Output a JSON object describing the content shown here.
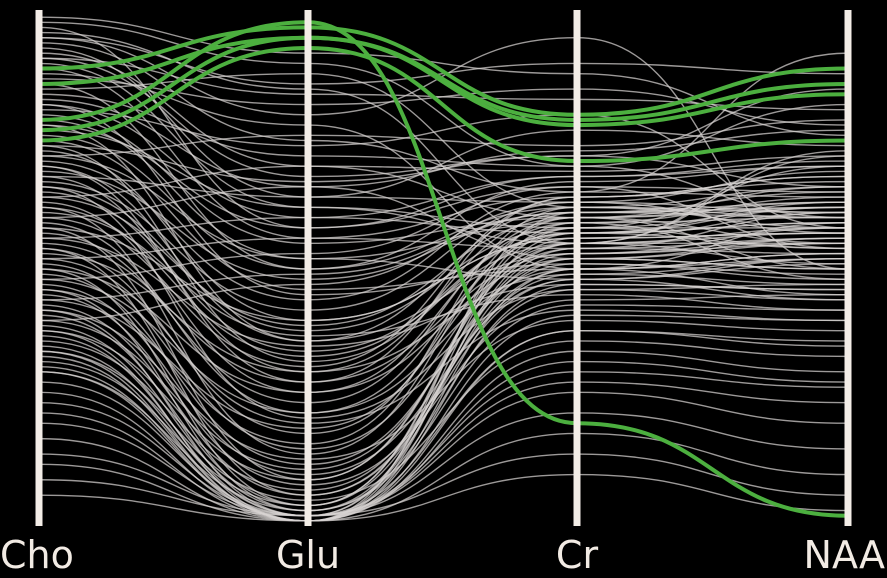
{
  "chart_data": {
    "type": "parallel-coordinates",
    "title": "",
    "axes": [
      "Cho",
      "Glu",
      "Cr",
      "NAA"
    ],
    "ylim": [
      0,
      1
    ],
    "grid": false,
    "legend": "none",
    "colors": {
      "background": "#000000",
      "axis": "#f3ede7",
      "background_lines": "#d8d4d2",
      "highlight": "#4caf3f"
    },
    "highlighted": [
      [
        0.89,
        0.97,
        0.8,
        0.89
      ],
      [
        0.86,
        0.95,
        0.79,
        0.86
      ],
      [
        0.77,
        0.95,
        0.78,
        0.84
      ],
      [
        0.75,
        0.93,
        0.71,
        0.75
      ],
      [
        0.79,
        0.98,
        0.2,
        0.02
      ]
    ],
    "series": [
      [
        0.98,
        0.9,
        0.7,
        0.6
      ],
      [
        0.96,
        0.85,
        0.55,
        0.72
      ],
      [
        0.95,
        0.8,
        0.95,
        0.5
      ],
      [
        0.94,
        0.75,
        0.65,
        0.92
      ],
      [
        0.92,
        0.7,
        0.6,
        0.55
      ],
      [
        0.91,
        0.68,
        0.72,
        0.66
      ],
      [
        0.9,
        0.62,
        0.58,
        0.7
      ],
      [
        0.88,
        0.78,
        0.5,
        0.45
      ],
      [
        0.87,
        0.82,
        0.85,
        0.78
      ],
      [
        0.85,
        0.88,
        0.62,
        0.6
      ],
      [
        0.84,
        0.72,
        0.7,
        0.82
      ],
      [
        0.83,
        0.66,
        0.52,
        0.5
      ],
      [
        0.82,
        0.6,
        0.57,
        0.62
      ],
      [
        0.81,
        0.74,
        0.8,
        0.58
      ],
      [
        0.8,
        0.55,
        0.6,
        0.66
      ],
      [
        0.79,
        0.52,
        0.48,
        0.44
      ],
      [
        0.78,
        0.58,
        0.66,
        0.54
      ],
      [
        0.77,
        0.62,
        0.55,
        0.73
      ],
      [
        0.76,
        0.5,
        0.62,
        0.61
      ],
      [
        0.75,
        0.46,
        0.5,
        0.52
      ],
      [
        0.74,
        0.67,
        0.72,
        0.85
      ],
      [
        0.73,
        0.4,
        0.56,
        0.57
      ],
      [
        0.72,
        0.52,
        0.59,
        0.48
      ],
      [
        0.71,
        0.44,
        0.65,
        0.64
      ],
      [
        0.7,
        0.36,
        0.53,
        0.55
      ],
      [
        0.69,
        0.48,
        0.61,
        0.6
      ],
      [
        0.68,
        0.3,
        0.49,
        0.47
      ],
      [
        0.67,
        0.42,
        0.63,
        0.69
      ],
      [
        0.66,
        0.38,
        0.58,
        0.58
      ],
      [
        0.65,
        0.34,
        0.55,
        0.51
      ],
      [
        0.64,
        0.39,
        0.6,
        0.63
      ],
      [
        0.63,
        0.26,
        0.52,
        0.56
      ],
      [
        0.62,
        0.33,
        0.57,
        0.59
      ],
      [
        0.61,
        0.37,
        0.45,
        0.42
      ],
      [
        0.6,
        0.31,
        0.64,
        0.67
      ],
      [
        0.59,
        0.22,
        0.5,
        0.53
      ],
      [
        0.58,
        0.4,
        0.56,
        0.61
      ],
      [
        0.57,
        0.24,
        0.6,
        0.5
      ],
      [
        0.56,
        0.35,
        0.47,
        0.46
      ],
      [
        0.55,
        0.28,
        0.53,
        0.58
      ],
      [
        0.54,
        0.18,
        0.58,
        0.62
      ],
      [
        0.53,
        0.3,
        0.61,
        0.65
      ],
      [
        0.52,
        0.2,
        0.42,
        0.4
      ],
      [
        0.51,
        0.15,
        0.54,
        0.56
      ],
      [
        0.5,
        0.26,
        0.59,
        0.6
      ],
      [
        0.49,
        0.12,
        0.51,
        0.49
      ],
      [
        0.48,
        0.22,
        0.57,
        0.63
      ],
      [
        0.47,
        0.1,
        0.48,
        0.52
      ],
      [
        0.46,
        0.16,
        0.62,
        0.58
      ],
      [
        0.45,
        0.08,
        0.44,
        0.45
      ],
      [
        0.44,
        0.19,
        0.55,
        0.55
      ],
      [
        0.43,
        0.06,
        0.5,
        0.59
      ],
      [
        0.42,
        0.13,
        0.4,
        0.38
      ],
      [
        0.41,
        0.04,
        0.58,
        0.54
      ],
      [
        0.4,
        0.11,
        0.52,
        0.5
      ],
      [
        0.39,
        0.03,
        0.46,
        0.47
      ],
      [
        0.38,
        0.09,
        0.56,
        0.57
      ],
      [
        0.37,
        0.02,
        0.38,
        0.36
      ],
      [
        0.36,
        0.07,
        0.49,
        0.52
      ],
      [
        0.35,
        0.02,
        0.54,
        0.61
      ],
      [
        0.34,
        0.05,
        0.36,
        0.33
      ],
      [
        0.33,
        0.01,
        0.47,
        0.46
      ],
      [
        0.32,
        0.04,
        0.53,
        0.56
      ],
      [
        0.31,
        0.01,
        0.34,
        0.3
      ],
      [
        0.3,
        0.03,
        0.43,
        0.42
      ],
      [
        0.28,
        0.02,
        0.3,
        0.27
      ],
      [
        0.26,
        0.01,
        0.41,
        0.4
      ],
      [
        0.24,
        0.02,
        0.28,
        0.24
      ],
      [
        0.22,
        0.01,
        0.38,
        0.35
      ],
      [
        0.2,
        0.02,
        0.26,
        0.2
      ],
      [
        0.17,
        0.01,
        0.32,
        0.28
      ],
      [
        0.14,
        0.02,
        0.22,
        0.15
      ],
      [
        0.12,
        0.01,
        0.18,
        0.1
      ],
      [
        0.09,
        0.02,
        0.14,
        0.06
      ],
      [
        0.06,
        0.01,
        0.1,
        0.03
      ],
      [
        0.97,
        0.58,
        0.68,
        0.71
      ],
      [
        0.93,
        0.64,
        0.63,
        0.57
      ],
      [
        0.89,
        0.56,
        0.54,
        0.53
      ],
      [
        0.86,
        0.5,
        0.67,
        0.7
      ],
      [
        0.82,
        0.45,
        0.51,
        0.48
      ],
      [
        0.78,
        0.36,
        0.62,
        0.66
      ],
      [
        0.74,
        0.32,
        0.57,
        0.54
      ],
      [
        0.7,
        0.28,
        0.64,
        0.68
      ],
      [
        0.66,
        0.21,
        0.46,
        0.44
      ],
      [
        0.62,
        0.14,
        0.6,
        0.62
      ],
      [
        0.58,
        0.09,
        0.55,
        0.57
      ],
      [
        0.54,
        0.06,
        0.48,
        0.51
      ],
      [
        0.5,
        0.04,
        0.59,
        0.64
      ],
      [
        0.46,
        0.03,
        0.52,
        0.55
      ],
      [
        0.42,
        0.02,
        0.57,
        0.59
      ],
      [
        0.38,
        0.01,
        0.61,
        0.63
      ],
      [
        0.34,
        0.01,
        0.55,
        0.58
      ],
      [
        0.3,
        0.01,
        0.5,
        0.53
      ],
      [
        0.99,
        0.92,
        0.88,
        0.76
      ],
      [
        0.95,
        0.86,
        0.9,
        0.88
      ],
      [
        0.91,
        0.84,
        0.83,
        0.81
      ],
      [
        0.72,
        0.76,
        0.74,
        0.79
      ],
      [
        0.68,
        0.64,
        0.77,
        0.74
      ],
      [
        0.64,
        0.7,
        0.69,
        0.72
      ],
      [
        0.6,
        0.66,
        0.73,
        0.77
      ],
      [
        0.56,
        0.6,
        0.68,
        0.7
      ],
      [
        0.52,
        0.56,
        0.64,
        0.68
      ],
      [
        0.48,
        0.53,
        0.66,
        0.65
      ],
      [
        0.44,
        0.49,
        0.61,
        0.62
      ],
      [
        0.4,
        0.47,
        0.63,
        0.61
      ]
    ]
  }
}
